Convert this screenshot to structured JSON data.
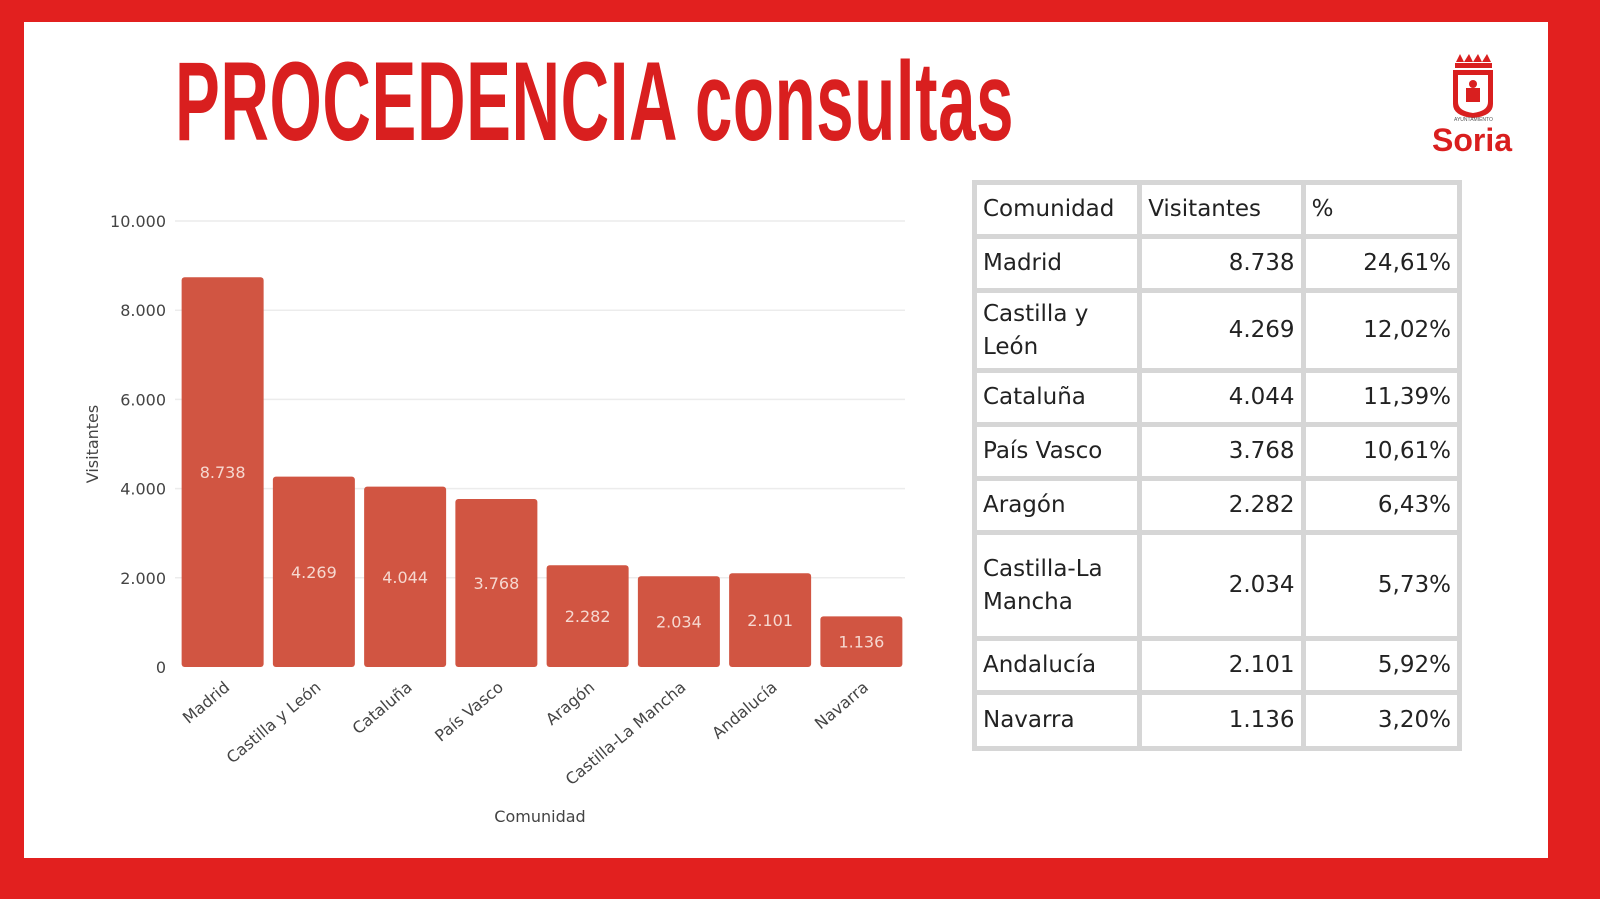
{
  "title": "PROCEDENCIA consultas",
  "logo": {
    "text": "Soria",
    "subtext": "AYUNTAMIENTO"
  },
  "colors": {
    "border": "#e2201f",
    "title": "#d91f1f",
    "bar": "#d15542",
    "bar_label": "#f6d8d0"
  },
  "chart_data": {
    "type": "bar",
    "categories": [
      "Madrid",
      "Castilla y León",
      "Cataluña",
      "País Vasco",
      "Aragón",
      "Castilla-La Mancha",
      "Andalucía",
      "Navarra"
    ],
    "values": [
      8738,
      4269,
      4044,
      3768,
      2282,
      2034,
      2101,
      1136
    ],
    "data_labels": [
      "8.738",
      "4.269",
      "4.044",
      "3.768",
      "2.282",
      "2.034",
      "2.101",
      "1.136"
    ],
    "xlabel": "Comunidad",
    "ylabel": "Visitantes",
    "ylim": [
      0,
      10000
    ],
    "yticks": [
      0,
      2000,
      4000,
      6000,
      8000,
      10000
    ],
    "ytick_labels": [
      "0",
      "2.000",
      "4.000",
      "6.000",
      "8.000",
      "10.000"
    ],
    "grid": true
  },
  "table": {
    "headers": [
      "Comunidad",
      "Visitantes",
      "%"
    ],
    "rows": [
      [
        "Madrid",
        "8.738",
        "24,61%"
      ],
      [
        "Castilla y León",
        "4.269",
        "12,02%"
      ],
      [
        "Cataluña",
        "4.044",
        "11,39%"
      ],
      [
        "País Vasco",
        "3.768",
        "10,61%"
      ],
      [
        "Aragón",
        "2.282",
        "6,43%"
      ],
      [
        "Castilla-La Mancha",
        "2.034",
        "5,73%"
      ],
      [
        "Andalucía",
        "2.101",
        "5,92%"
      ],
      [
        "Navarra",
        "1.136",
        "3,20%"
      ]
    ]
  }
}
